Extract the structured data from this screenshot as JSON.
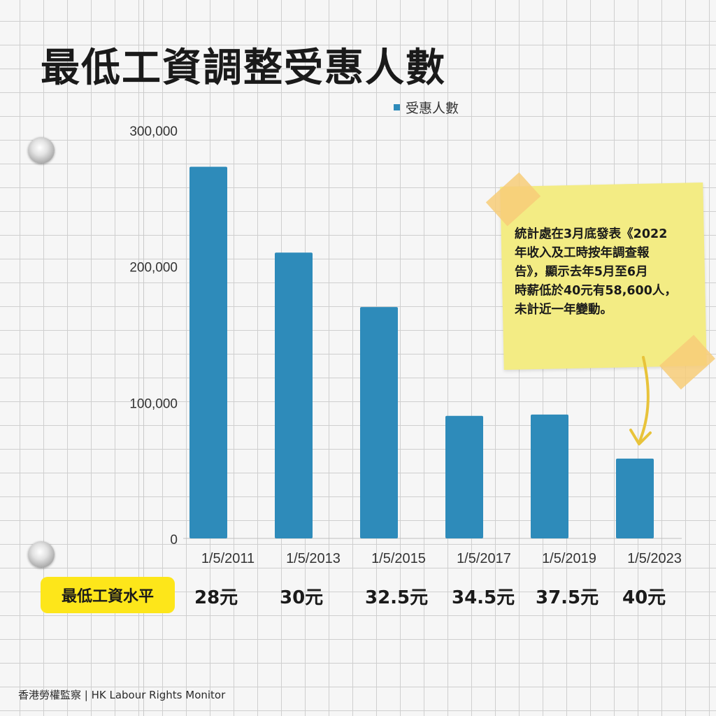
{
  "title": "最低工資調整受惠人數",
  "chart_data": {
    "type": "bar",
    "categories": [
      "1/5/2011",
      "1/5/2013",
      "1/5/2015",
      "1/5/2017",
      "1/5/2019",
      "1/5/2023"
    ],
    "series": [
      {
        "name": "受惠人數",
        "values": [
          273000,
          210000,
          170000,
          90000,
          91000,
          58600
        ]
      }
    ],
    "ylim": [
      0,
      300000
    ],
    "yticks": [
      0,
      100000,
      200000,
      300000
    ],
    "ytick_labels": [
      "0",
      "100,000",
      "200,000",
      "300,000"
    ],
    "legend_position": "top-right",
    "colors": {
      "bar": "#2e8bba"
    }
  },
  "wage_label": "最低工資水平",
  "wages": [
    "28元",
    "30元",
    "32.5元",
    "34.5元",
    "37.5元",
    "40元"
  ],
  "note_lines": [
    "統計處在3月底發表《2022",
    "年收入及工時按年調查報",
    "告》，顯示去年5月至6月",
    "時薪低於40元有58,600人，",
    "未計近一年變動。"
  ],
  "footer": "香港勞權監察 | HK Labour Rights Monitor"
}
